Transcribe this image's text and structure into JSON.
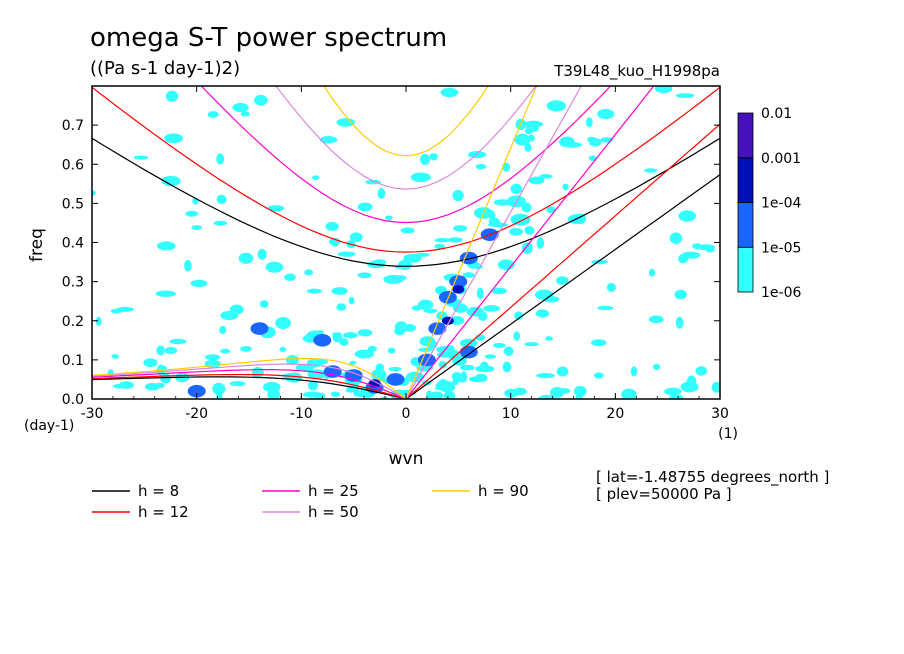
{
  "header": {
    "title": "omega S-T power spectrum",
    "units": "((Pa s-1 day-1)2)",
    "run_id": "T39L48_kuo_H1998pa"
  },
  "info": {
    "lat": "[ lat=-1.48755 degrees_north ]",
    "plev": "[ plev=50000 Pa ]"
  },
  "chart_data": {
    "type": "heatmap",
    "title": "omega S-T power spectrum",
    "xlabel": "wvn",
    "ylabel": "freq",
    "x_unit": "(1)",
    "y_unit": "(day-1)",
    "xlim": [
      -30,
      30
    ],
    "ylim": [
      0,
      0.8
    ],
    "x_ticks": [
      -30,
      -20,
      -10,
      0,
      10,
      20,
      30
    ],
    "x_tick_labels": [
      "-30",
      "-20",
      "-10",
      "0",
      "10",
      "20",
      "30"
    ],
    "y_ticks": [
      0,
      0.1,
      0.2,
      0.3,
      0.4,
      0.5,
      0.6,
      0.7
    ],
    "y_tick_labels": [
      "0.0",
      "0.1",
      "0.2",
      "0.3",
      "0.4",
      "0.5",
      "0.6",
      "0.7"
    ],
    "colorbar": {
      "levels": [
        "1e-06",
        "1e-05",
        "1e-04",
        "0.001",
        "0.01"
      ],
      "colors": [
        "#33ffff",
        "#1a66ff",
        "#0011bb",
        "#4411bb"
      ]
    },
    "blobs": [
      {
        "x": -3,
        "y": 0.03,
        "level": 1
      },
      {
        "x": -5,
        "y": 0.06,
        "level": 1
      },
      {
        "x": -7,
        "y": 0.07,
        "level": 1
      },
      {
        "x": -1,
        "y": 0.05,
        "level": 1
      },
      {
        "x": 2,
        "y": 0.1,
        "level": 1
      },
      {
        "x": 3,
        "y": 0.18,
        "level": 1
      },
      {
        "x": 4,
        "y": 0.26,
        "level": 1
      },
      {
        "x": 5,
        "y": 0.3,
        "level": 1
      },
      {
        "x": 6,
        "y": 0.36,
        "level": 1
      },
      {
        "x": 8,
        "y": 0.42,
        "level": 1
      },
      {
        "x": 6,
        "y": 0.12,
        "level": 1
      },
      {
        "x": -14,
        "y": 0.18,
        "level": 1
      },
      {
        "x": -20,
        "y": 0.02,
        "level": 1
      },
      {
        "x": -8,
        "y": 0.15,
        "level": 1
      },
      {
        "x": 4,
        "y": 0.2,
        "level": 2
      },
      {
        "x": -3,
        "y": 0.04,
        "level": 2
      },
      {
        "x": 5,
        "y": 0.28,
        "level": 2
      }
    ],
    "dispersion_curves": [
      {
        "label": "h =  8",
        "color": "#000000"
      },
      {
        "label": "h = 12",
        "color": "#ff0000"
      },
      {
        "label": "h = 25",
        "color": "#ff00cc"
      },
      {
        "label": "h = 50",
        "color": "#dd88dd"
      },
      {
        "label": "h = 90",
        "color": "#ffcc00"
      }
    ]
  }
}
